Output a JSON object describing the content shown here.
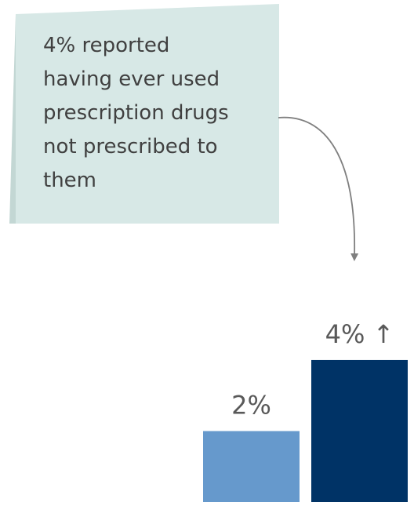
{
  "callout": {
    "lines": [
      "4% reported",
      "having ever used",
      "prescription drugs",
      "not prescribed to",
      "them"
    ]
  },
  "colors": {
    "callout_fill": "#d7e8e6",
    "callout_shadow": "#c3d7d4",
    "callout_text": "#404040",
    "arrow": "#7f7f7f",
    "bar_light": "#6699cc",
    "bar_dark": "#003366",
    "label_text": "#595959"
  },
  "chart_data": {
    "type": "bar",
    "categories": [
      "",
      ""
    ],
    "values": [
      2,
      4
    ],
    "value_labels": [
      "2%",
      "4% ↑"
    ],
    "bar_colors": [
      "#6699cc",
      "#003366"
    ],
    "ylim": [
      0,
      5.7
    ],
    "title": "",
    "xlabel": "",
    "ylabel": "",
    "grid": false,
    "legend": "none"
  }
}
